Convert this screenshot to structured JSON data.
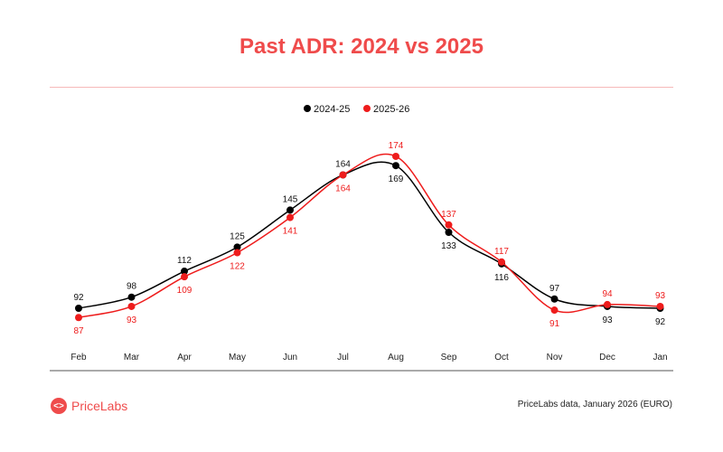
{
  "chart_data": {
    "type": "line",
    "title": "Past ADR: 2024 vs 2025",
    "categories": [
      "Feb",
      "Mar",
      "Apr",
      "May",
      "Jun",
      "Jul",
      "Aug",
      "Sep",
      "Oct",
      "Nov",
      "Dec",
      "Jan"
    ],
    "series": [
      {
        "name": "2024-25",
        "color": "#000000",
        "values": [
          92,
          98,
          112,
          125,
          145,
          164,
          169,
          133,
          116,
          97,
          93,
          92
        ]
      },
      {
        "name": "2025-26",
        "color": "#ee1c1c",
        "values": [
          87,
          93,
          109,
          122,
          141,
          164,
          174,
          137,
          117,
          91,
          94,
          93
        ]
      }
    ],
    "legend": "top-center",
    "grid": false,
    "data_labels": true
  },
  "footer": {
    "brand": "PriceLabs",
    "source": "PriceLabs data, January 2026 (EURO)"
  },
  "colors": {
    "accent": "#ef4b4b"
  }
}
